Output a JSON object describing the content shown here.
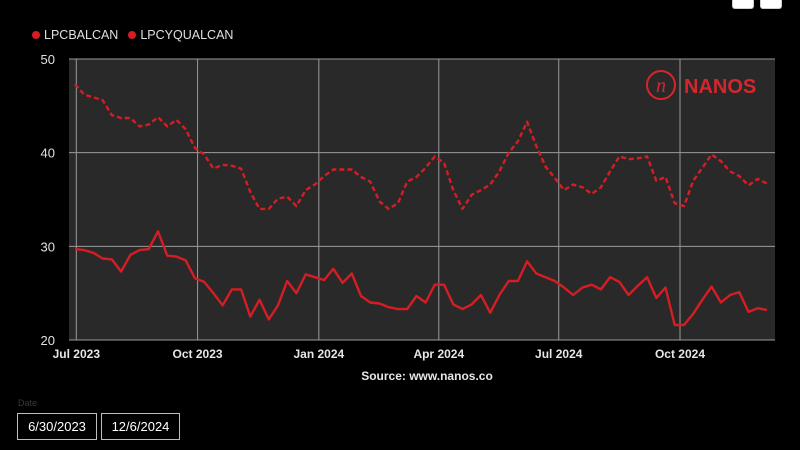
{
  "colors": {
    "series": "#d41e24",
    "plot_bg": "#292929",
    "grid": "#9a9a9a",
    "logo": "#d6262c"
  },
  "legend": [
    "LPCBALCAN",
    "LPCYQUALCAN"
  ],
  "logo_text": "NANOS",
  "source_text": "Source: www.nanos.co",
  "date_filter": {
    "label": "Date",
    "start": "6/30/2023",
    "end": "12/6/2024"
  },
  "chart_data": {
    "type": "line",
    "x_ticks": [
      {
        "label": "Jul 2023",
        "date": "2023-07-01"
      },
      {
        "label": "Oct 2023",
        "date": "2023-10-01"
      },
      {
        "label": "Jan 2024",
        "date": "2024-01-01"
      },
      {
        "label": "Apr 2024",
        "date": "2024-04-01"
      },
      {
        "label": "Jul 2024",
        "date": "2024-07-01"
      },
      {
        "label": "Oct 2024",
        "date": "2024-10-01"
      }
    ],
    "xlim": [
      "2023-06-30",
      "2024-12-06"
    ],
    "ylim": [
      20,
      50
    ],
    "y_ticks": [
      20,
      30,
      40,
      50
    ],
    "grid": true,
    "legend_position": "top-left",
    "series": [
      {
        "name": "LPCBALCAN",
        "style": "solid",
        "points": [
          [
            "2023-06-30",
            29.7
          ],
          [
            "2023-07-07",
            29.6
          ],
          [
            "2023-07-14",
            29.3
          ],
          [
            "2023-07-21",
            28.7
          ],
          [
            "2023-07-28",
            28.6
          ],
          [
            "2023-08-04",
            27.3
          ],
          [
            "2023-08-11",
            29.1
          ],
          [
            "2023-08-18",
            29.6
          ],
          [
            "2023-08-25",
            29.7
          ],
          [
            "2023-09-01",
            31.6
          ],
          [
            "2023-09-08",
            29.0
          ],
          [
            "2023-09-15",
            28.9
          ],
          [
            "2023-09-22",
            28.5
          ],
          [
            "2023-09-29",
            26.6
          ],
          [
            "2023-10-06",
            26.2
          ],
          [
            "2023-10-13",
            25.0
          ],
          [
            "2023-10-20",
            23.7
          ],
          [
            "2023-10-27",
            25.4
          ],
          [
            "2023-11-03",
            25.4
          ],
          [
            "2023-11-10",
            22.5
          ],
          [
            "2023-11-17",
            24.3
          ],
          [
            "2023-11-24",
            22.2
          ],
          [
            "2023-12-01",
            23.7
          ],
          [
            "2023-12-08",
            26.3
          ],
          [
            "2023-12-15",
            25.0
          ],
          [
            "2023-12-22",
            27.0
          ],
          [
            "2023-12-29",
            26.7
          ],
          [
            "2024-01-05",
            26.4
          ],
          [
            "2024-01-12",
            27.6
          ],
          [
            "2024-01-19",
            26.1
          ],
          [
            "2024-01-26",
            27.1
          ],
          [
            "2024-02-02",
            24.7
          ],
          [
            "2024-02-09",
            24.0
          ],
          [
            "2024-02-16",
            23.9
          ],
          [
            "2024-02-23",
            23.5
          ],
          [
            "2024-03-01",
            23.3
          ],
          [
            "2024-03-08",
            23.3
          ],
          [
            "2024-03-15",
            24.7
          ],
          [
            "2024-03-22",
            24.0
          ],
          [
            "2024-03-29",
            25.9
          ],
          [
            "2024-04-05",
            25.9
          ],
          [
            "2024-04-12",
            23.8
          ],
          [
            "2024-04-19",
            23.3
          ],
          [
            "2024-04-26",
            23.8
          ],
          [
            "2024-05-03",
            24.8
          ],
          [
            "2024-05-10",
            22.9
          ],
          [
            "2024-05-17",
            24.8
          ],
          [
            "2024-05-24",
            26.3
          ],
          [
            "2024-05-31",
            26.3
          ],
          [
            "2024-06-07",
            28.4
          ],
          [
            "2024-06-14",
            27.1
          ],
          [
            "2024-06-21",
            26.7
          ],
          [
            "2024-06-28",
            26.3
          ],
          [
            "2024-07-05",
            25.6
          ],
          [
            "2024-07-12",
            24.8
          ],
          [
            "2024-07-19",
            25.6
          ],
          [
            "2024-07-26",
            25.9
          ],
          [
            "2024-08-02",
            25.4
          ],
          [
            "2024-08-09",
            26.7
          ],
          [
            "2024-08-16",
            26.2
          ],
          [
            "2024-08-23",
            24.8
          ],
          [
            "2024-08-30",
            25.8
          ],
          [
            "2024-09-06",
            26.7
          ],
          [
            "2024-09-13",
            24.5
          ],
          [
            "2024-09-20",
            25.6
          ],
          [
            "2024-09-27",
            21.6
          ],
          [
            "2024-10-04",
            21.6
          ],
          [
            "2024-10-11",
            22.8
          ],
          [
            "2024-10-18",
            24.3
          ],
          [
            "2024-10-25",
            25.7
          ],
          [
            "2024-11-01",
            24.0
          ],
          [
            "2024-11-08",
            24.8
          ],
          [
            "2024-11-15",
            25.1
          ],
          [
            "2024-11-22",
            23.0
          ],
          [
            "2024-11-29",
            23.4
          ],
          [
            "2024-12-06",
            23.2
          ]
        ]
      },
      {
        "name": "LPCYQUALCAN",
        "style": "dashed",
        "points": [
          [
            "2023-06-30",
            47.3
          ],
          [
            "2023-07-07",
            46.2
          ],
          [
            "2023-07-14",
            45.9
          ],
          [
            "2023-07-21",
            45.6
          ],
          [
            "2023-07-28",
            44.0
          ],
          [
            "2023-08-04",
            43.7
          ],
          [
            "2023-08-11",
            43.7
          ],
          [
            "2023-08-18",
            42.8
          ],
          [
            "2023-08-25",
            43.0
          ],
          [
            "2023-09-01",
            43.8
          ],
          [
            "2023-09-08",
            42.8
          ],
          [
            "2023-09-15",
            43.5
          ],
          [
            "2023-09-22",
            42.5
          ],
          [
            "2023-09-29",
            40.5
          ],
          [
            "2023-10-06",
            39.8
          ],
          [
            "2023-10-13",
            38.3
          ],
          [
            "2023-10-20",
            38.7
          ],
          [
            "2023-10-27",
            38.6
          ],
          [
            "2023-11-03",
            38.3
          ],
          [
            "2023-11-10",
            35.8
          ],
          [
            "2023-11-17",
            34.0
          ],
          [
            "2023-11-24",
            34.0
          ],
          [
            "2023-12-01",
            35.1
          ],
          [
            "2023-12-08",
            35.3
          ],
          [
            "2023-12-15",
            34.3
          ],
          [
            "2023-12-22",
            36.0
          ],
          [
            "2023-12-29",
            36.6
          ],
          [
            "2024-01-05",
            37.5
          ],
          [
            "2024-01-12",
            38.2
          ],
          [
            "2024-01-19",
            38.2
          ],
          [
            "2024-01-26",
            38.2
          ],
          [
            "2024-02-02",
            37.4
          ],
          [
            "2024-02-09",
            36.9
          ],
          [
            "2024-02-16",
            34.8
          ],
          [
            "2024-02-23",
            34.0
          ],
          [
            "2024-03-01",
            34.6
          ],
          [
            "2024-03-08",
            36.9
          ],
          [
            "2024-03-15",
            37.4
          ],
          [
            "2024-03-22",
            38.4
          ],
          [
            "2024-03-29",
            39.6
          ],
          [
            "2024-04-05",
            38.9
          ],
          [
            "2024-04-12",
            36.0
          ],
          [
            "2024-04-19",
            34.0
          ],
          [
            "2024-04-26",
            35.5
          ],
          [
            "2024-05-03",
            36.0
          ],
          [
            "2024-05-10",
            36.6
          ],
          [
            "2024-05-17",
            38.0
          ],
          [
            "2024-05-24",
            40.0
          ],
          [
            "2024-05-31",
            41.2
          ],
          [
            "2024-06-07",
            43.3
          ],
          [
            "2024-06-14",
            40.7
          ],
          [
            "2024-06-21",
            38.5
          ],
          [
            "2024-06-28",
            37.3
          ],
          [
            "2024-07-05",
            36.0
          ],
          [
            "2024-07-12",
            36.6
          ],
          [
            "2024-07-19",
            36.3
          ],
          [
            "2024-07-26",
            35.6
          ],
          [
            "2024-08-02",
            36.3
          ],
          [
            "2024-08-09",
            38.0
          ],
          [
            "2024-08-16",
            39.6
          ],
          [
            "2024-08-23",
            39.3
          ],
          [
            "2024-08-30",
            39.4
          ],
          [
            "2024-09-06",
            39.6
          ],
          [
            "2024-09-13",
            37.0
          ],
          [
            "2024-09-20",
            37.4
          ],
          [
            "2024-09-27",
            34.6
          ],
          [
            "2024-10-04",
            34.3
          ],
          [
            "2024-10-11",
            37.0
          ],
          [
            "2024-10-18",
            38.4
          ],
          [
            "2024-10-25",
            39.8
          ],
          [
            "2024-11-01",
            39.1
          ],
          [
            "2024-11-08",
            38.0
          ],
          [
            "2024-11-15",
            37.5
          ],
          [
            "2024-11-22",
            36.5
          ],
          [
            "2024-11-29",
            37.2
          ],
          [
            "2024-12-06",
            36.7
          ]
        ]
      }
    ]
  }
}
